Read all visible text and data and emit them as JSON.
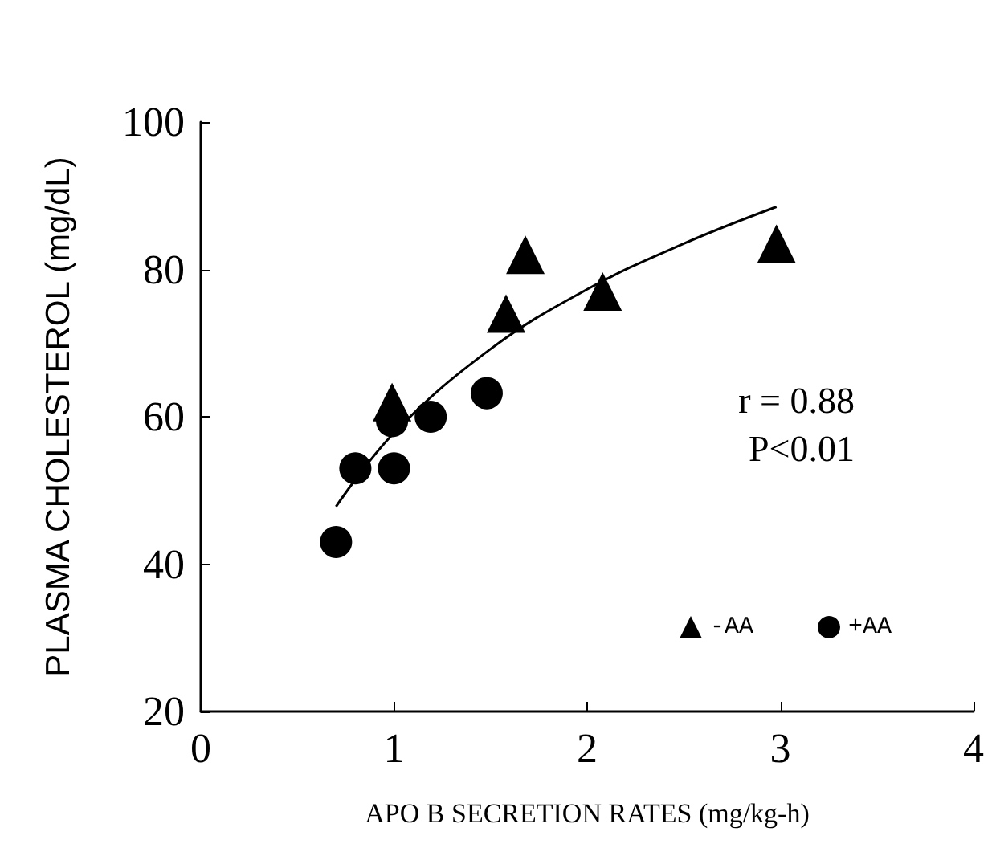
{
  "chart_data": {
    "type": "scatter",
    "xlabel": "APO B SECRETION RATES (mg/kg-h)",
    "ylabel": "PLASMA CHOLESTEROL (mg/dL)",
    "xlim": [
      0,
      4
    ],
    "xticks": [
      0,
      1,
      2,
      3,
      4
    ],
    "ylim": [
      20,
      100
    ],
    "yticks": [
      20,
      40,
      60,
      80,
      100
    ],
    "grid": false,
    "legend": "bottom right",
    "annotations": [
      "r = 0.88",
      "P<0.01"
    ],
    "series": [
      {
        "name": "-AA",
        "color": "#000000",
        "marker": "triangle",
        "x": [
          0.99,
          1.58,
          1.68,
          2.08,
          2.98
        ],
        "values": [
          62,
          74,
          82,
          77,
          83.5
        ]
      },
      {
        "name": "+AA",
        "color": "#000000",
        "marker": "circle",
        "x": [
          0.7,
          0.8,
          1.0,
          0.99,
          1.19,
          1.48
        ],
        "values": [
          43,
          53,
          53,
          59.4,
          60,
          63.2
        ]
      },
      {
        "type": "line",
        "color": "#000000",
        "marker": "none",
        "x": [
          0.7,
          1.0,
          1.5,
          2.0,
          2.5,
          2.98
        ],
        "values": [
          47.8,
          57.8,
          69.2,
          77.3,
          83.5,
          88.5
        ]
      }
    ]
  }
}
